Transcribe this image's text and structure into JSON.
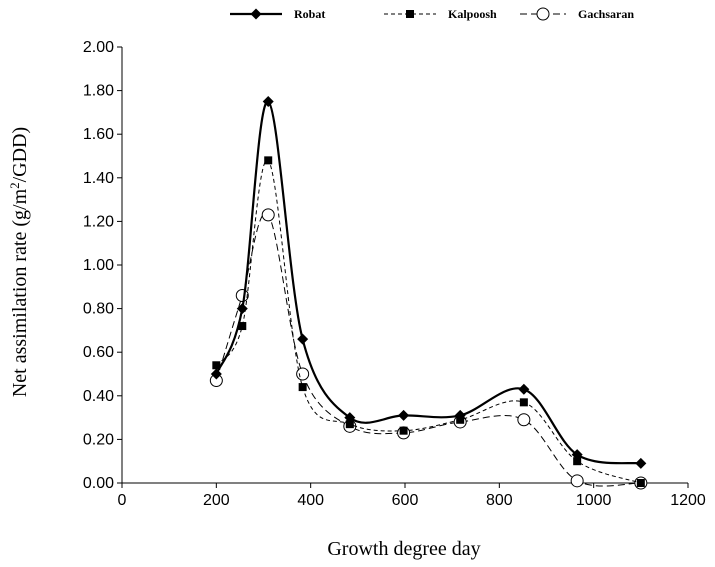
{
  "chart_data": {
    "type": "line",
    "title": "",
    "xlabel": "Growth degree day",
    "ylabel_main": "Net assimilation rate (g/m",
    "ylabel_sup": "2",
    "ylabel_end": "/GDD)",
    "xlim": [
      0,
      1200
    ],
    "ylim": [
      0,
      2
    ],
    "x_ticks": [
      0,
      200,
      400,
      600,
      800,
      1000,
      1200
    ],
    "x_tick_labels": [
      "0",
      "200",
      "400",
      "600",
      "800",
      "1000",
      "1200"
    ],
    "y_ticks": [
      0,
      0.2,
      0.4,
      0.6,
      0.8,
      1.0,
      1.2,
      1.4,
      1.6,
      1.8,
      2.0
    ],
    "y_tick_labels": [
      "0.00",
      "0.20",
      "0.40",
      "0.60",
      "0.80",
      "1.00",
      "1.20",
      "1.40",
      "1.60",
      "1.80",
      "2.00"
    ],
    "grid": false,
    "legend_position": "top",
    "series": [
      {
        "name": "Robat",
        "marker": "diamond",
        "line": "solid",
        "points": [
          [
            200,
            0.5
          ],
          [
            255,
            0.8
          ],
          [
            310,
            1.75
          ],
          [
            383,
            0.66
          ],
          [
            483,
            0.3
          ],
          [
            597,
            0.31
          ],
          [
            717,
            0.31
          ],
          [
            852,
            0.43
          ],
          [
            965,
            0.13
          ],
          [
            1100,
            0.09
          ]
        ]
      },
      {
        "name": "Kalpoosh",
        "marker": "square",
        "line": "dashed",
        "points": [
          [
            200,
            0.54
          ],
          [
            255,
            0.72
          ],
          [
            310,
            1.48
          ],
          [
            383,
            0.44
          ],
          [
            483,
            0.27
          ],
          [
            597,
            0.24
          ],
          [
            717,
            0.29
          ],
          [
            852,
            0.37
          ],
          [
            965,
            0.1
          ],
          [
            1100,
            0.0
          ]
        ]
      },
      {
        "name": "Gachsaran",
        "marker": "circle",
        "line": "longdash",
        "points": [
          [
            200,
            0.47
          ],
          [
            255,
            0.86
          ],
          [
            310,
            1.23
          ],
          [
            383,
            0.5
          ],
          [
            483,
            0.26
          ],
          [
            597,
            0.23
          ],
          [
            717,
            0.28
          ],
          [
            852,
            0.29
          ],
          [
            965,
            0.01
          ],
          [
            1100,
            0.0
          ]
        ]
      }
    ]
  }
}
